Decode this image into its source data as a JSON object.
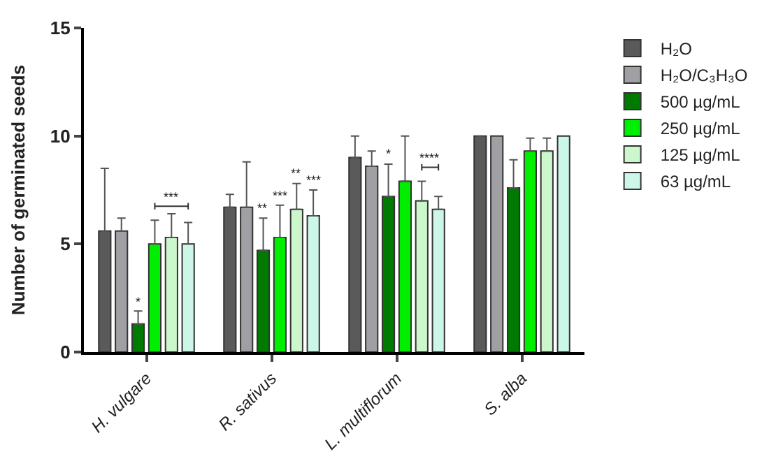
{
  "chart_data": {
    "type": "bar",
    "ylabel": "Number of germinated seeds",
    "categories": [
      "H. vulgare",
      "R. sativus",
      "L. multiflorum",
      "S. alba"
    ],
    "ylim": [
      0,
      15
    ],
    "yticks": [
      0,
      5,
      10,
      15
    ],
    "legend": "right",
    "series": [
      {
        "name": "H₂O",
        "color": "#5a5a5a",
        "values": [
          5.6,
          6.7,
          9.0,
          10.0
        ],
        "errors": [
          [
            5.6,
            8.5
          ],
          [
            6.7,
            7.3
          ],
          [
            9.0,
            10.0
          ],
          null
        ]
      },
      {
        "name": "H₂O/C₃H₃O",
        "color": "#a0a0a4",
        "values": [
          5.6,
          6.7,
          8.6,
          10.0
        ],
        "errors": [
          [
            5.6,
            6.2
          ],
          [
            6.7,
            8.8
          ],
          [
            8.6,
            9.3
          ],
          null
        ]
      },
      {
        "name": "500 µg/mL",
        "color": "#007a00",
        "values": [
          1.3,
          4.7,
          7.2,
          7.6
        ],
        "errors": [
          [
            1.3,
            1.9
          ],
          [
            4.7,
            6.2
          ],
          [
            7.2,
            8.7
          ],
          [
            7.6,
            8.9
          ]
        ],
        "value_labels": [
          "*",
          "**",
          "*",
          null
        ]
      },
      {
        "name": "250 µg/mL",
        "color": "#00ee00",
        "values": [
          5.0,
          5.3,
          7.9,
          9.3
        ],
        "errors": [
          [
            5.0,
            6.1
          ],
          [
            5.3,
            6.8
          ],
          [
            7.9,
            10.0
          ],
          [
            9.3,
            9.9
          ]
        ],
        "value_labels": [
          null,
          "***",
          null,
          null
        ]
      },
      {
        "name": "125 µg/mL",
        "color": "#ccf7cc",
        "values": [
          5.3,
          6.6,
          7.0,
          9.3
        ],
        "errors": [
          [
            5.3,
            6.4
          ],
          [
            6.6,
            7.8
          ],
          [
            7.0,
            7.9
          ],
          [
            9.3,
            9.9
          ]
        ],
        "value_labels": [
          null,
          "**",
          null,
          null
        ]
      },
      {
        "name": "63 µg/mL",
        "color": "#ccf7e8",
        "values": [
          5.0,
          6.3,
          6.6,
          10.0
        ],
        "errors": [
          [
            5.0,
            6.0
          ],
          [
            6.3,
            7.5
          ],
          [
            6.6,
            7.2
          ],
          null
        ],
        "value_labels": [
          null,
          "***",
          null,
          null
        ]
      }
    ],
    "annotations": [
      "***",
      "****"
    ]
  }
}
